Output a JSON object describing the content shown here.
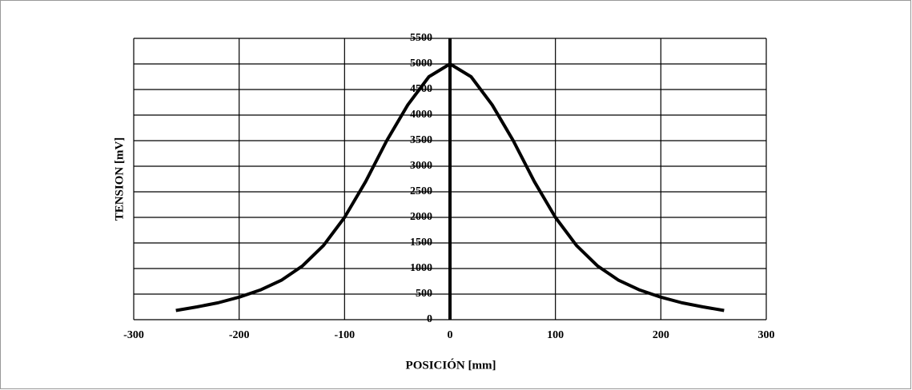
{
  "chart_data": {
    "type": "line",
    "x_label": "POSICIÓN [mm]",
    "y_label": "TENSION [mV]",
    "x": [
      -260,
      -240,
      -220,
      -200,
      -180,
      -160,
      -140,
      -120,
      -100,
      -80,
      -60,
      -40,
      -20,
      0,
      20,
      40,
      60,
      80,
      100,
      120,
      140,
      160,
      180,
      200,
      220,
      240,
      260
    ],
    "series": [
      {
        "color": "#000000",
        "values": [
          180,
          250,
          330,
          440,
          580,
          770,
          1050,
          1450,
          2000,
          2700,
          3500,
          4200,
          4750,
          5000,
          4750,
          4200,
          3500,
          2700,
          2000,
          1450,
          1050,
          770,
          580,
          440,
          330,
          250,
          180
        ]
      }
    ],
    "xlim": [
      -300,
      300
    ],
    "xticks": [
      -300,
      -200,
      -100,
      0,
      100,
      200,
      300
    ],
    "ylim": [
      0,
      5500
    ],
    "yticks": [
      0,
      500,
      1000,
      1500,
      2000,
      2500,
      3000,
      3500,
      4000,
      4500,
      5000,
      5500
    ],
    "grid": true
  }
}
